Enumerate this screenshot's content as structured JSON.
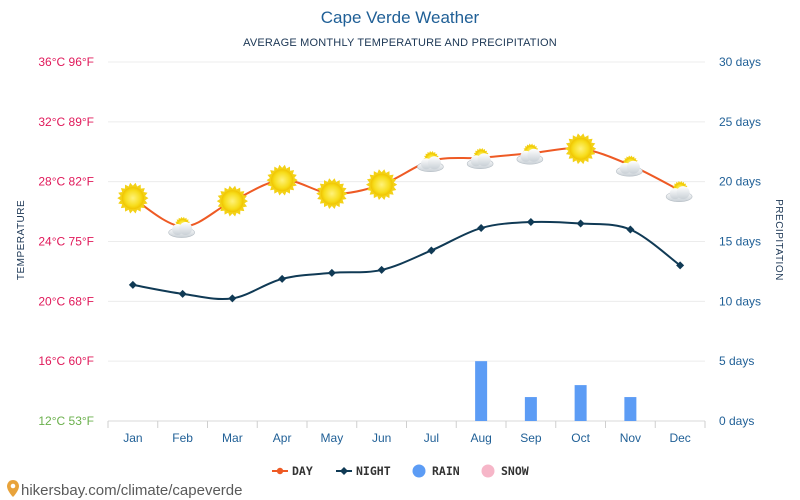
{
  "source_text": "hikersbay.com/climate/capeverde",
  "chart_data": {
    "type": "line",
    "title": "Cape Verde Weather",
    "subtitle": "AVERAGE MONTHLY TEMPERATURE AND PRECIPITATION",
    "ylabel_left": "TEMPERATURE",
    "ylabel_right": "PRECIPITATION",
    "categories": [
      "Jan",
      "Feb",
      "Mar",
      "Apr",
      "May",
      "Jun",
      "Jul",
      "Aug",
      "Sep",
      "Oct",
      "Nov",
      "Dec"
    ],
    "left_axis": {
      "unit": "°C",
      "range": [
        12,
        36
      ],
      "ticks": [
        {
          "value": 36,
          "label": "36°C 96°F"
        },
        {
          "value": 32,
          "label": "32°C 89°F"
        },
        {
          "value": 28,
          "label": "28°C 82°F"
        },
        {
          "value": 24,
          "label": "24°C 75°F"
        },
        {
          "value": 20,
          "label": "20°C 68°F"
        },
        {
          "value": 16,
          "label": "16°C 60°F"
        },
        {
          "value": 12,
          "label": "12°C 53°F"
        }
      ],
      "label_color": "#e0195a",
      "bottom_label_color": "#6ab04c"
    },
    "right_axis": {
      "unit": "days",
      "range": [
        0,
        30
      ],
      "ticks": [
        {
          "value": 30,
          "label": "30 days"
        },
        {
          "value": 25,
          "label": "25 days"
        },
        {
          "value": 20,
          "label": "20 days"
        },
        {
          "value": 15,
          "label": "15 days"
        },
        {
          "value": 10,
          "label": "10 days"
        },
        {
          "value": 5,
          "label": "5 days"
        },
        {
          "value": 0,
          "label": "0 days"
        }
      ]
    },
    "series": [
      {
        "name": "DAY",
        "kind": "line",
        "color": "#ee5a24",
        "values": [
          26.9,
          25.0,
          26.7,
          28.1,
          27.2,
          27.8,
          29.4,
          29.6,
          29.9,
          30.2,
          29.1,
          27.4
        ]
      },
      {
        "name": "NIGHT",
        "kind": "line",
        "color": "#103a55",
        "values": [
          21.1,
          20.5,
          20.2,
          21.5,
          21.9,
          22.1,
          23.4,
          24.9,
          25.3,
          25.2,
          24.8,
          22.4
        ]
      },
      {
        "name": "RAIN",
        "kind": "bar",
        "color": "#5c9cf5",
        "values": [
          0,
          0,
          0,
          0,
          0,
          0,
          0,
          5,
          2,
          3,
          2,
          0
        ]
      },
      {
        "name": "SNOW",
        "kind": "bar",
        "color": "#f6b6c8",
        "values": [
          0,
          0,
          0,
          0,
          0,
          0,
          0,
          0,
          0,
          0,
          0,
          0
        ]
      }
    ],
    "weather_icons": [
      "sun",
      "cloud-sun",
      "sun",
      "sun",
      "sun",
      "sun",
      "cloud-sun",
      "cloud-sun",
      "cloud-sun",
      "sun",
      "cloud-sun",
      "cloud-sun"
    ],
    "grid": true,
    "legend_position": "bottom"
  }
}
